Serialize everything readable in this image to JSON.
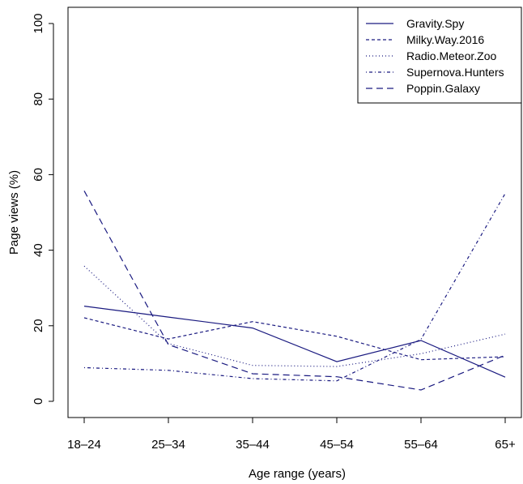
{
  "chart_data": {
    "type": "line",
    "categories": [
      "18–24",
      "25–34",
      "35–44",
      "45–54",
      "55–64",
      "65+"
    ],
    "xlabel": "Age range (years)",
    "ylabel": "Page views (%)",
    "ylim": [
      0,
      100
    ],
    "yticks": [
      "0",
      "20",
      "40",
      "60",
      "80",
      "100"
    ],
    "grid": false,
    "legend_position": "top-right",
    "line_color": "#1a1a80",
    "series": [
      {
        "name": "Gravity.Spy",
        "dash": "solid",
        "values": [
          25.2,
          22.3,
          19.4,
          10.5,
          16.1,
          6.4
        ]
      },
      {
        "name": "Milky.Way.2016",
        "dash": "dashed",
        "values": [
          22.1,
          16.5,
          21.1,
          17.2,
          11.0,
          11.8
        ]
      },
      {
        "name": "Radio.Meteor.Zoo",
        "dash": "dotted",
        "values": [
          35.8,
          15.3,
          9.5,
          9.2,
          12.6,
          17.8
        ]
      },
      {
        "name": "Supernova.Hunters",
        "dash": "dotdash",
        "values": [
          8.9,
          8.2,
          6.0,
          5.4,
          16.4,
          55.0
        ]
      },
      {
        "name": "Poppin.Galaxy",
        "dash": "longdash",
        "values": [
          55.7,
          15.0,
          7.3,
          6.5,
          3.0,
          12.2
        ]
      }
    ]
  }
}
